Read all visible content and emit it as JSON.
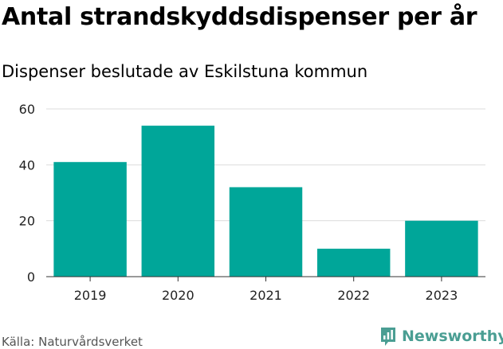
{
  "title": "Antal strandskyddsdispenser per år",
  "subtitle": "Dispenser beslutade av Eskilstuna kommun",
  "source": "Källa: Naturvårdsverket",
  "brand": {
    "name": "Newsworthy",
    "icon": "newsworthy-logo-icon",
    "color": "#4a9e93"
  },
  "chart_data": {
    "type": "bar",
    "categories": [
      "2019",
      "2020",
      "2021",
      "2022",
      "2023"
    ],
    "values": [
      41,
      54,
      32,
      10,
      20
    ],
    "ylim": [
      0,
      60
    ],
    "yticks": [
      0,
      20,
      40,
      60
    ],
    "grid": true,
    "bar_color": "#00a699"
  }
}
